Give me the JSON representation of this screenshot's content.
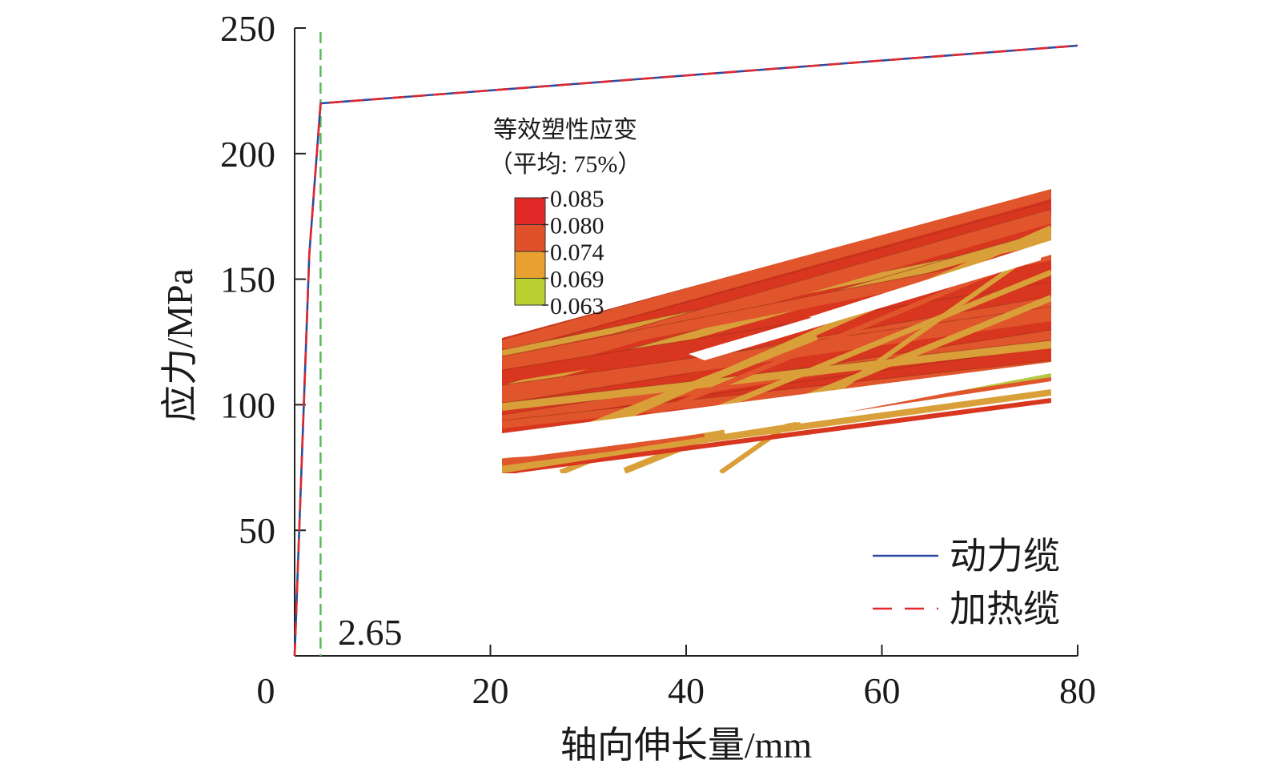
{
  "chart_data": {
    "type": "line",
    "xlabel": "轴向伸长量/mm",
    "ylabel": "应力/MPa",
    "xlim": [
      0,
      80
    ],
    "ylim": [
      0,
      250
    ],
    "xticks": [
      0,
      20,
      40,
      60,
      80
    ],
    "yticks": [
      50,
      100,
      150,
      200,
      250
    ],
    "xtick_labels": [
      "0",
      "20",
      "40",
      "60",
      "80"
    ],
    "ytick_labels": [
      "50",
      "100",
      "150",
      "200",
      "250"
    ],
    "grid": false,
    "legend_position": "bottom-right",
    "series": [
      {
        "name": "动力缆",
        "color": "#2b4aa0",
        "style": "solid",
        "x": [
          0,
          1.5,
          2.65,
          80
        ],
        "y": [
          0,
          160,
          220,
          243
        ]
      },
      {
        "name": "加热缆",
        "color": "#e0282e",
        "style": "dashed",
        "x": [
          0,
          1.5,
          2.65,
          80
        ],
        "y": [
          0,
          160,
          220,
          243
        ]
      }
    ],
    "reference_line": {
      "x": 2.65,
      "color": "#5cb85c",
      "style": "dashed"
    },
    "annotation": "2.65",
    "colorbar": {
      "title_line1": "等效塑性应变",
      "title_line2": "（平均: 75%）",
      "ticks": [
        "0.085",
        "0.080",
        "0.074",
        "0.069",
        "0.063"
      ],
      "colors": [
        "#e02826",
        "#e0502a",
        "#e8a030",
        "#b8d030"
      ]
    },
    "inset_colors": {
      "red": "#d8361f",
      "orange_red": "#e0552b",
      "amber": "#d9a03a",
      "yellow_green": "#b8c840"
    }
  }
}
